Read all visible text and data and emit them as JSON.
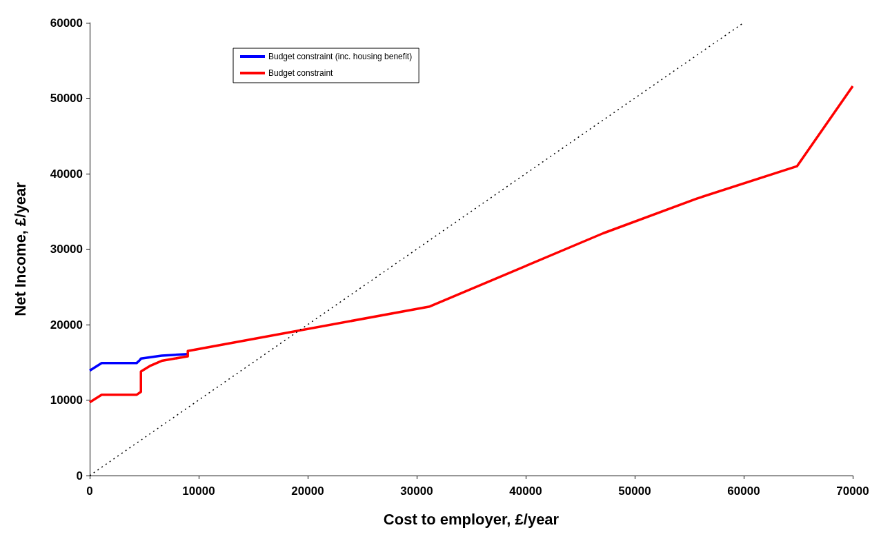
{
  "chart_data": {
    "type": "line",
    "xlabel": "Cost to employer, £/year",
    "ylabel": "Net Income, £/year",
    "xlim": [
      0,
      70000
    ],
    "xticks": [
      0,
      10000,
      20000,
      30000,
      40000,
      50000,
      60000,
      70000
    ],
    "ylim": [
      0,
      60000
    ],
    "yticks": [
      0,
      10000,
      20000,
      30000,
      40000,
      50000,
      60000
    ],
    "grid": false,
    "legend": "top left",
    "marker": "none",
    "series": [
      {
        "name": "Budget constraint (inc. housing benefit)",
        "color": "#0000ff",
        "x": [
          0,
          1100,
          4300,
          4600,
          4700,
          6600,
          9000
        ],
        "values": [
          13900,
          14900,
          14900,
          15300,
          15500,
          15900,
          16100
        ]
      },
      {
        "name": "Budget constraint",
        "color": "#ff0000",
        "x": [
          0,
          1100,
          4300,
          4700,
          4700,
          5500,
          6600,
          9000,
          9000,
          31200,
          47100,
          55700,
          64900,
          70000
        ],
        "values": [
          9700,
          10700,
          10700,
          11100,
          13800,
          14500,
          15200,
          15800,
          16500,
          22400,
          32100,
          36700,
          41000,
          51600
        ]
      },
      {
        "type": "line",
        "color": "#000000",
        "line_style": "dotted",
        "x": [
          0,
          60000
        ],
        "values": [
          0,
          60000
        ]
      }
    ]
  }
}
